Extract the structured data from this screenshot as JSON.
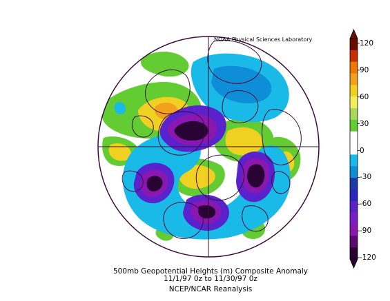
{
  "credit": "NOAA Physical Sciences Laboratory",
  "caption": {
    "line1": "500mb Geopotential Heights (m)   Composite Anomaly",
    "line2": "11/1/97 0z  to 11/30/97 0z",
    "line3": "NCEP/NCAR Reanalysis"
  },
  "colorbar": {
    "labels": [
      "120",
      "90",
      "60",
      "30",
      "0",
      "-30",
      "-60",
      "-90",
      "-120"
    ],
    "colors": [
      "#6a0d00",
      "#c63000",
      "#f07800",
      "#f2a11e",
      "#f0d020",
      "#f4ee5a",
      "#a7d95c",
      "#62cc32",
      "#ffffff",
      "#ffffff",
      "#19b9e8",
      "#0f8ed8",
      "#1b3ca8",
      "#2828c0",
      "#5a22cc",
      "#7a1fc8",
      "#8a18b0",
      "#5a0a70",
      "#2a0335"
    ]
  },
  "colors": {
    "outline": "#3a0a3a",
    "very_low": "#2a0335",
    "low_purple": "#8a18b0",
    "violet": "#5a22cc",
    "blue": "#0f8ed8",
    "light_blue": "#19b9e8",
    "green": "#62cc32",
    "yellow": "#f0d020",
    "orange": "#f2a11e"
  }
}
